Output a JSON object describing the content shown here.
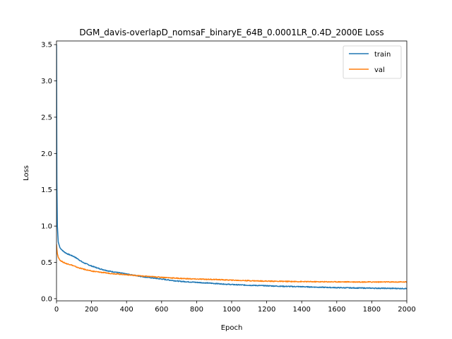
{
  "chart_data": {
    "type": "line",
    "title": "DGM_davis-overlapD_nomsaF_binaryE_64B_0.0001LR_0.4D_2000E Loss",
    "xlabel": "Epoch",
    "ylabel": "Loss",
    "xlim": [
      0,
      2000
    ],
    "ylim": [
      -0.03,
      3.55
    ],
    "xticks": [
      0,
      200,
      400,
      600,
      800,
      1000,
      1200,
      1400,
      1600,
      1800,
      2000
    ],
    "yticks": [
      0.0,
      0.5,
      1.0,
      1.5,
      2.0,
      2.5,
      3.0,
      3.5
    ],
    "xtick_labels": [
      "0",
      "200",
      "400",
      "600",
      "800",
      "1000",
      "1200",
      "1400",
      "1600",
      "1800",
      "2000"
    ],
    "ytick_labels": [
      "0.0",
      "0.5",
      "1.0",
      "1.5",
      "2.0",
      "2.5",
      "3.0",
      "3.5"
    ],
    "grid": false,
    "legend_position": "top-right",
    "series": [
      {
        "name": "train",
        "color": "#1f77b4",
        "x": [
          0,
          2,
          5,
          10,
          20,
          40,
          60,
          80,
          100,
          120,
          150,
          200,
          250,
          300,
          400,
          500,
          600,
          700,
          800,
          900,
          1000,
          1100,
          1200,
          1300,
          1400,
          1500,
          1600,
          1700,
          1800,
          1900,
          2000
        ],
        "y": [
          3.5,
          1.6,
          1.0,
          0.78,
          0.7,
          0.65,
          0.62,
          0.6,
          0.58,
          0.55,
          0.5,
          0.45,
          0.41,
          0.38,
          0.34,
          0.3,
          0.27,
          0.24,
          0.225,
          0.21,
          0.195,
          0.185,
          0.178,
          0.17,
          0.165,
          0.158,
          0.152,
          0.148,
          0.145,
          0.142,
          0.14
        ]
      },
      {
        "name": "val",
        "color": "#ff7f0e",
        "x": [
          0,
          2,
          5,
          10,
          20,
          40,
          60,
          80,
          100,
          120,
          150,
          200,
          250,
          300,
          400,
          500,
          600,
          700,
          800,
          900,
          1000,
          1100,
          1200,
          1300,
          1400,
          1500,
          1600,
          1700,
          1800,
          1900,
          2000
        ],
        "y": [
          0.75,
          0.68,
          0.62,
          0.57,
          0.53,
          0.5,
          0.48,
          0.47,
          0.45,
          0.43,
          0.41,
          0.38,
          0.365,
          0.35,
          0.33,
          0.31,
          0.295,
          0.28,
          0.27,
          0.265,
          0.255,
          0.248,
          0.242,
          0.238,
          0.235,
          0.233,
          0.232,
          0.231,
          0.23,
          0.23,
          0.23
        ]
      }
    ]
  }
}
